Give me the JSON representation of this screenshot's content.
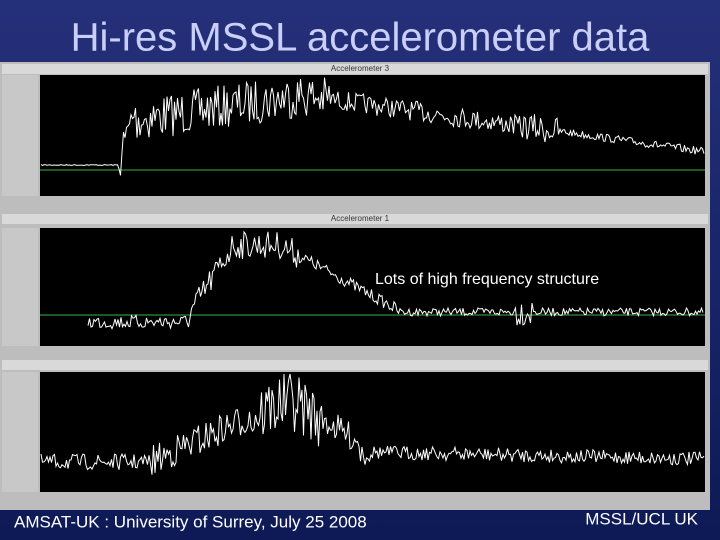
{
  "header": {
    "title": "Hi-res MSSL accelerometer data"
  },
  "panels": [
    {
      "title": "Accelerometer 3"
    },
    {
      "title": "Accelerometer 1"
    }
  ],
  "annotation": "Lots of high frequency structure",
  "footer": {
    "left": "AMSAT-UK :  University of Surrey, July 25 2008",
    "right": "MSSL/UCL UK"
  }
}
